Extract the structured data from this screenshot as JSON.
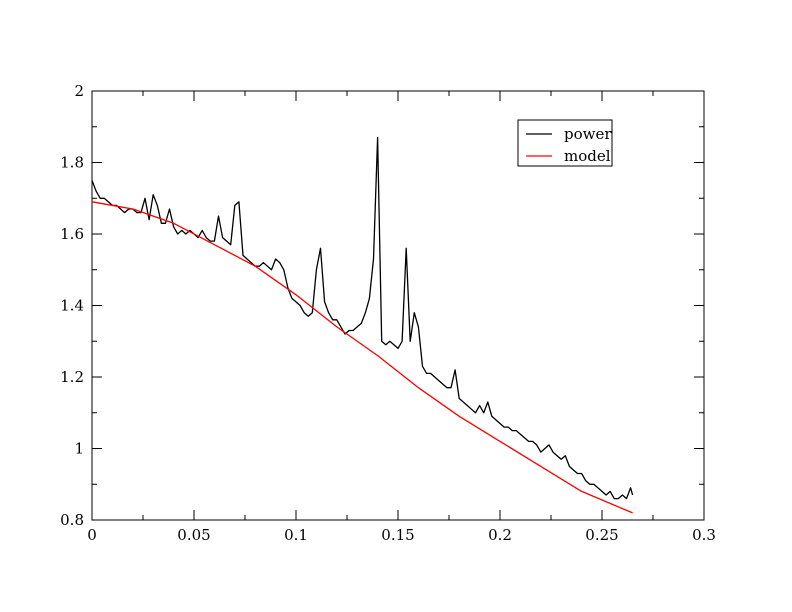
{
  "chart_data": {
    "type": "line",
    "title": "",
    "xlabel": "",
    "ylabel": "",
    "xlim": [
      0,
      0.3
    ],
    "ylim": [
      0.8,
      2.0
    ],
    "grid": false,
    "legend_position": "top-right",
    "x_ticks": [
      0,
      0.05,
      0.1,
      0.15,
      0.2,
      0.25,
      0.3
    ],
    "x_tick_labels": [
      "0",
      "0.05",
      "0.1",
      "0.15",
      "0.2",
      "0.25",
      "0.3"
    ],
    "y_ticks": [
      0.8,
      1.0,
      1.2,
      1.4,
      1.6,
      1.8,
      2.0
    ],
    "y_tick_labels": [
      "0.8",
      "1",
      "1.2",
      "1.4",
      "1.6",
      "1.8",
      "2"
    ],
    "series": [
      {
        "name": "power",
        "color": "#000000",
        "x": [
          0,
          0.002,
          0.004,
          0.006,
          0.008,
          0.01,
          0.012,
          0.014,
          0.016,
          0.018,
          0.02,
          0.022,
          0.024,
          0.026,
          0.028,
          0.03,
          0.032,
          0.034,
          0.036,
          0.038,
          0.04,
          0.042,
          0.044,
          0.046,
          0.048,
          0.05,
          0.052,
          0.054,
          0.056,
          0.058,
          0.06,
          0.062,
          0.064,
          0.066,
          0.068,
          0.07,
          0.072,
          0.074,
          0.076,
          0.078,
          0.08,
          0.082,
          0.084,
          0.086,
          0.088,
          0.09,
          0.092,
          0.094,
          0.096,
          0.098,
          0.1,
          0.102,
          0.104,
          0.106,
          0.108,
          0.11,
          0.112,
          0.114,
          0.116,
          0.118,
          0.12,
          0.122,
          0.124,
          0.126,
          0.128,
          0.13,
          0.132,
          0.134,
          0.136,
          0.138,
          0.14,
          0.142,
          0.144,
          0.146,
          0.148,
          0.15,
          0.152,
          0.154,
          0.156,
          0.158,
          0.16,
          0.162,
          0.164,
          0.166,
          0.168,
          0.17,
          0.172,
          0.174,
          0.176,
          0.178,
          0.18,
          0.182,
          0.184,
          0.186,
          0.188,
          0.19,
          0.192,
          0.194,
          0.196,
          0.198,
          0.2,
          0.202,
          0.204,
          0.206,
          0.208,
          0.21,
          0.212,
          0.214,
          0.216,
          0.218,
          0.22,
          0.222,
          0.224,
          0.226,
          0.228,
          0.23,
          0.232,
          0.234,
          0.236,
          0.238,
          0.24,
          0.242,
          0.244,
          0.246,
          0.248,
          0.25,
          0.252,
          0.254,
          0.256,
          0.258,
          0.26,
          0.262,
          0.264,
          0.265
        ],
        "y": [
          1.75,
          1.72,
          1.7,
          1.7,
          1.69,
          1.68,
          1.68,
          1.67,
          1.66,
          1.67,
          1.67,
          1.66,
          1.66,
          1.7,
          1.64,
          1.71,
          1.68,
          1.63,
          1.63,
          1.67,
          1.62,
          1.6,
          1.61,
          1.6,
          1.61,
          1.6,
          1.59,
          1.61,
          1.59,
          1.58,
          1.58,
          1.65,
          1.59,
          1.58,
          1.57,
          1.68,
          1.69,
          1.54,
          1.53,
          1.52,
          1.51,
          1.51,
          1.52,
          1.51,
          1.5,
          1.53,
          1.52,
          1.5,
          1.45,
          1.42,
          1.41,
          1.4,
          1.38,
          1.37,
          1.38,
          1.5,
          1.56,
          1.41,
          1.38,
          1.36,
          1.36,
          1.34,
          1.32,
          1.33,
          1.33,
          1.34,
          1.35,
          1.38,
          1.42,
          1.53,
          1.87,
          1.3,
          1.29,
          1.3,
          1.29,
          1.28,
          1.3,
          1.56,
          1.3,
          1.38,
          1.34,
          1.23,
          1.21,
          1.21,
          1.2,
          1.19,
          1.18,
          1.17,
          1.17,
          1.22,
          1.14,
          1.13,
          1.12,
          1.11,
          1.1,
          1.12,
          1.1,
          1.13,
          1.09,
          1.08,
          1.07,
          1.06,
          1.06,
          1.05,
          1.05,
          1.04,
          1.03,
          1.02,
          1.02,
          1.01,
          0.99,
          1.0,
          1.01,
          0.99,
          0.98,
          0.97,
          0.98,
          0.95,
          0.94,
          0.93,
          0.93,
          0.91,
          0.9,
          0.9,
          0.89,
          0.88,
          0.87,
          0.88,
          0.86,
          0.86,
          0.87,
          0.86,
          0.89,
          0.87
        ]
      },
      {
        "name": "model",
        "color": "#ff0000",
        "x": [
          0,
          0.02,
          0.04,
          0.06,
          0.08,
          0.1,
          0.12,
          0.14,
          0.16,
          0.18,
          0.2,
          0.22,
          0.24,
          0.265
        ],
        "y": [
          1.69,
          1.67,
          1.63,
          1.57,
          1.51,
          1.43,
          1.34,
          1.26,
          1.17,
          1.09,
          1.02,
          0.95,
          0.88,
          0.82
        ]
      }
    ]
  }
}
